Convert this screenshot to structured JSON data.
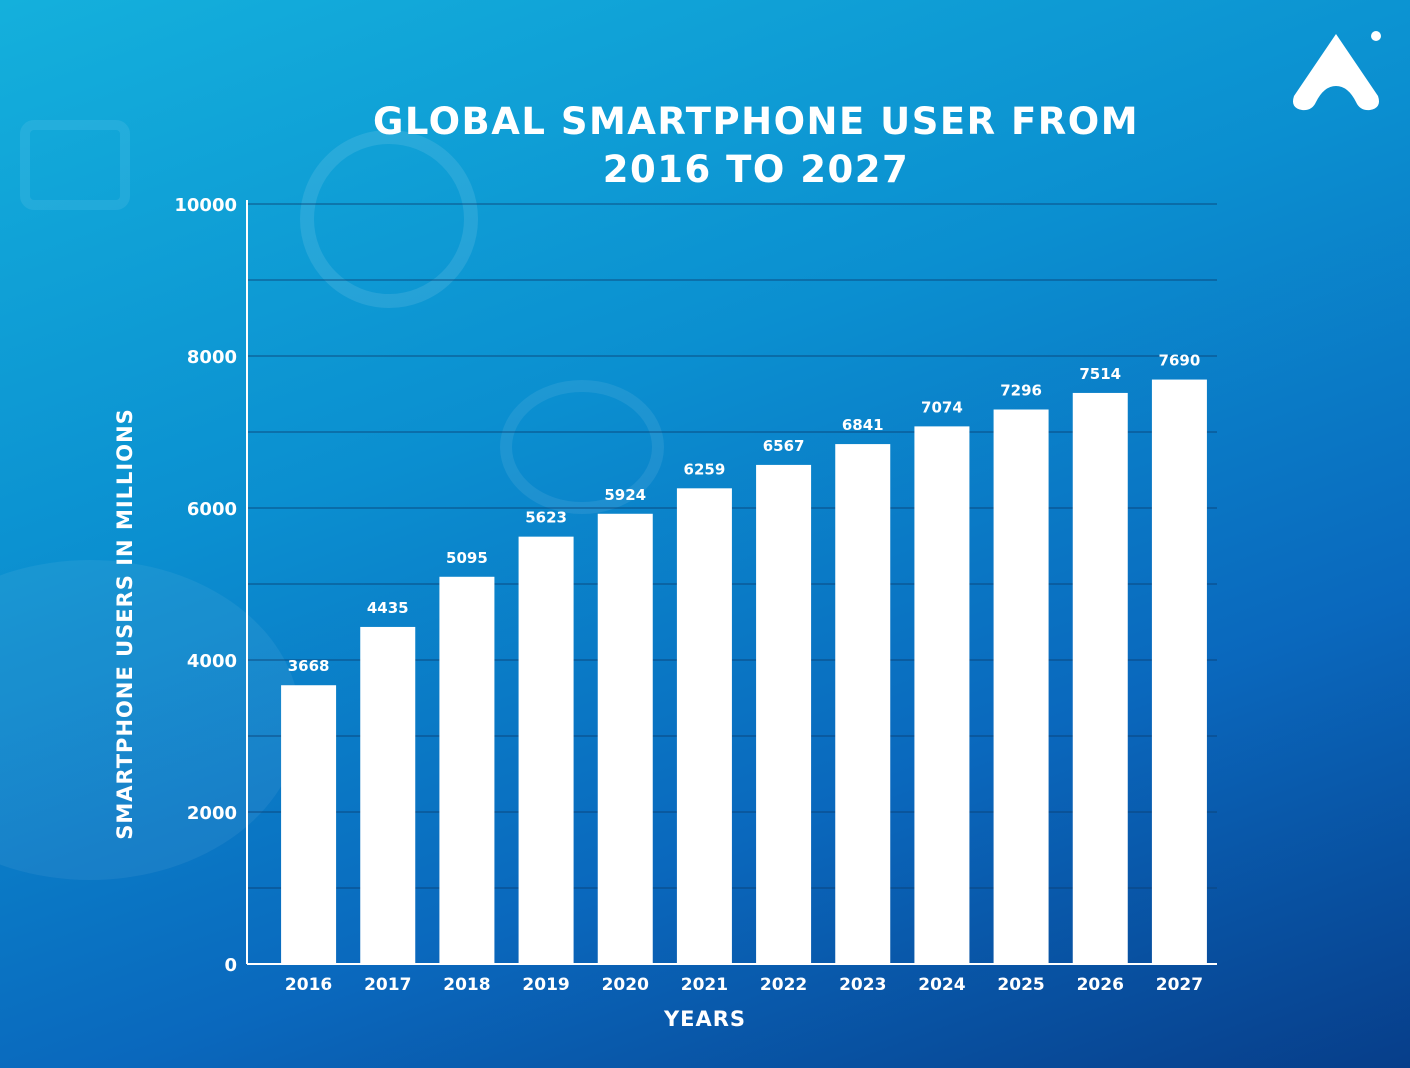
{
  "chart_data": {
    "type": "bar",
    "title": "GLOBAL SMARTPHONE USER FROM 2016 TO 2027",
    "title_lines": [
      "GLOBAL SMARTPHONE USER FROM",
      "2016 TO 2027"
    ],
    "xlabel": "YEARS",
    "ylabel": "SMARTPHONE USERS IN MILLIONS",
    "ylim": [
      0,
      10000
    ],
    "yticks": [
      0,
      2000,
      4000,
      6000,
      8000,
      10000
    ],
    "grid": true,
    "categories": [
      "2016",
      "2017",
      "2018",
      "2019",
      "2020",
      "2021",
      "2022",
      "2023",
      "2024",
      "2025",
      "2026",
      "2027"
    ],
    "values": [
      3668,
      4435,
      5095,
      5623,
      5924,
      6259,
      6567,
      6841,
      7074,
      7296,
      7514,
      7690
    ],
    "bar_color": "#ffffff"
  },
  "colors": {
    "background_start": "#14b0dc",
    "background_end": "#073e8a",
    "text": "#ffffff",
    "gridline": "#0c3f72"
  },
  "logo_icon": "brand-logo-icon"
}
